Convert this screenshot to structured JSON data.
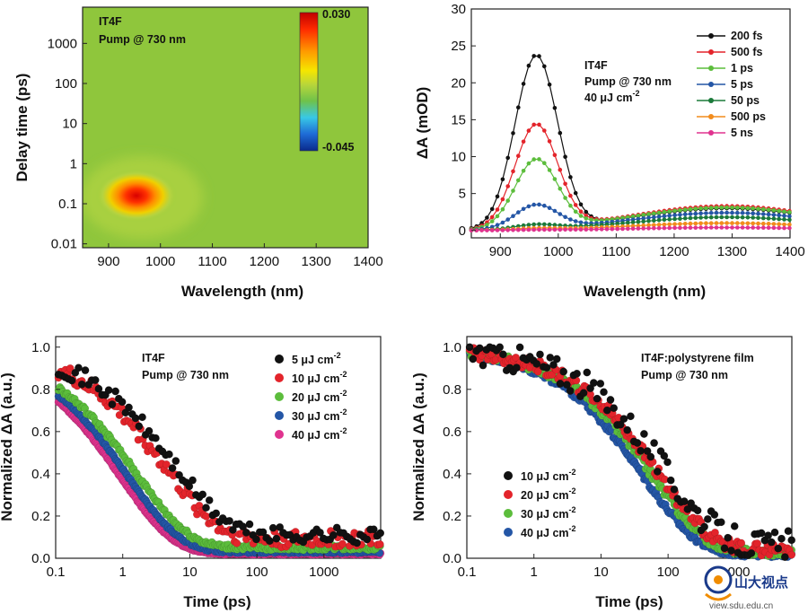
{
  "chart_data": [
    {
      "id": "a",
      "type": "heatmap",
      "title": "",
      "annotations": [
        "IT4F",
        "Pump @ 730 nm"
      ],
      "xlabel": "Wavelength (nm)",
      "ylabel": "Delay time (ps)",
      "xlim": [
        850,
        1400
      ],
      "ylim": [
        0.008,
        8000
      ],
      "yscale": "log",
      "xticks": [
        900,
        1000,
        1100,
        1200,
        1300,
        1400
      ],
      "yticks": [
        0.01,
        0.1,
        1,
        10,
        100,
        1000
      ],
      "ytick_labels": [
        "0.01",
        "0.1",
        "1",
        "10",
        "100",
        "1000"
      ],
      "background_value": 0.0,
      "peak": {
        "wavelength": 965,
        "delay": 0.13,
        "value": 0.03
      },
      "colorbar": {
        "min": -0.045,
        "max": 0.03,
        "labels": [
          "0.030",
          "-0.045"
        ],
        "colors": [
          "#c00000",
          "#ff2a00",
          "#ff9a00",
          "#f5e600",
          "#b9d63a",
          "#6fc24a",
          "#38c8e6",
          "#1e6bd6",
          "#0a2a8c"
        ]
      }
    },
    {
      "id": "b",
      "type": "line",
      "title": "",
      "annotations": [
        "IT4F",
        "Pump @ 730 nm",
        "40 μJ cm",
        "-2"
      ],
      "xlabel": "Wavelength (nm)",
      "ylabel": "ΔA (mOD)",
      "xlim": [
        850,
        1400
      ],
      "ylim": [
        -1,
        30
      ],
      "xticks": [
        900,
        1000,
        1100,
        1200,
        1300,
        1400
      ],
      "yticks": [
        0,
        5,
        10,
        15,
        20,
        25,
        30
      ],
      "legend_position": "top-right",
      "series": [
        {
          "name": "200 fs",
          "color": "#111111",
          "amp": 23.4,
          "broad": 3.0
        },
        {
          "name": "500 fs",
          "color": "#e3242b",
          "amp": 14.0,
          "broad": 3.3
        },
        {
          "name": "1 ps",
          "color": "#5cbd3c",
          "amp": 9.3,
          "broad": 3.1
        },
        {
          "name": "5 ps",
          "color": "#2456a6",
          "amp": 3.2,
          "broad": 2.4
        },
        {
          "name": "50 ps",
          "color": "#1b7a3a",
          "amp": 0.6,
          "broad": 1.8
        },
        {
          "name": "500 ps",
          "color": "#f28c1c",
          "amp": 0.2,
          "broad": 1.0
        },
        {
          "name": "5 ns",
          "color": "#e0338f",
          "amp": 0.05,
          "broad": 0.4
        }
      ]
    },
    {
      "id": "c",
      "type": "scatter",
      "title": "",
      "annotations": [
        "IT4F",
        "Pump @ 730 nm"
      ],
      "xlabel": "Time (ps)",
      "ylabel": "Normalized ΔA (a.u.)",
      "xscale": "log",
      "xlim": [
        0.1,
        7000
      ],
      "ylim": [
        0,
        1.05
      ],
      "xticks": [
        0.1,
        1,
        10,
        100,
        1000
      ],
      "xtick_labels": [
        "0.1",
        "1",
        "10",
        "100",
        "1000"
      ],
      "yticks": [
        0.0,
        0.2,
        0.4,
        0.6,
        0.8,
        1.0
      ],
      "ytick_labels": [
        "0.0",
        "0.2",
        "0.4",
        "0.6",
        "0.8",
        "1.0"
      ],
      "legend_position": "top-right",
      "series": [
        {
          "name": "5  μJ cm",
          "sup": "-2",
          "color": "#111111",
          "tau": 6.0,
          "offset": 0.11,
          "noise": 0.04,
          "step": 0.05
        },
        {
          "name": "10 μJ cm",
          "sup": "-2",
          "color": "#e3242b",
          "tau": 4.5,
          "offset": 0.09,
          "noise": 0.04,
          "step": 0.035
        },
        {
          "name": "20 μJ cm",
          "sup": "-2",
          "color": "#5cbd3c",
          "tau": 1.6,
          "offset": 0.05,
          "noise": 0.012,
          "step": 0.022
        },
        {
          "name": "30 μJ cm",
          "sup": "-2",
          "color": "#2456a6",
          "tau": 1.2,
          "offset": 0.03,
          "noise": 0.006,
          "step": 0.018
        },
        {
          "name": "40 μJ cm",
          "sup": "-2",
          "color": "#e0338f",
          "tau": 0.95,
          "offset": 0.02,
          "noise": 0.004,
          "step": 0.014
        }
      ]
    },
    {
      "id": "d",
      "type": "scatter",
      "title": "",
      "annotations": [
        "IT4F:polystyrene film",
        "Pump @ 730 nm"
      ],
      "xlabel": "Time (ps)",
      "ylabel": "Normalized ΔA (a.u.)",
      "xscale": "log",
      "xlim": [
        0.1,
        7000
      ],
      "ylim": [
        0,
        1.05
      ],
      "xticks": [
        0.1,
        1,
        10,
        100,
        1000
      ],
      "xtick_labels": [
        "0.1",
        "1",
        "10",
        "100",
        "1000"
      ],
      "yticks": [
        0.0,
        0.2,
        0.4,
        0.6,
        0.8,
        1.0
      ],
      "ytick_labels": [
        "0.0",
        "0.2",
        "0.4",
        "0.6",
        "0.8",
        "1.0"
      ],
      "legend_position": "bottom-left",
      "series": [
        {
          "name": "10 μJ cm",
          "sup": "-2",
          "color": "#111111",
          "tau": 95,
          "offset": 0.06,
          "noise": 0.07,
          "step": 0.05
        },
        {
          "name": "20 μJ cm",
          "sup": "-2",
          "color": "#e3242b",
          "tau": 75,
          "offset": 0.04,
          "noise": 0.03,
          "step": 0.03
        },
        {
          "name": "30 μJ cm",
          "sup": "-2",
          "color": "#5cbd3c",
          "tau": 60,
          "offset": 0.03,
          "noise": 0.02,
          "step": 0.025
        },
        {
          "name": "40 μJ cm",
          "sup": "-2",
          "color": "#2456a6",
          "tau": 45,
          "offset": 0.02,
          "noise": 0.015,
          "step": 0.02
        }
      ]
    }
  ],
  "watermark": {
    "text": "山大视点",
    "url": "view.sdu.edu.cn"
  }
}
